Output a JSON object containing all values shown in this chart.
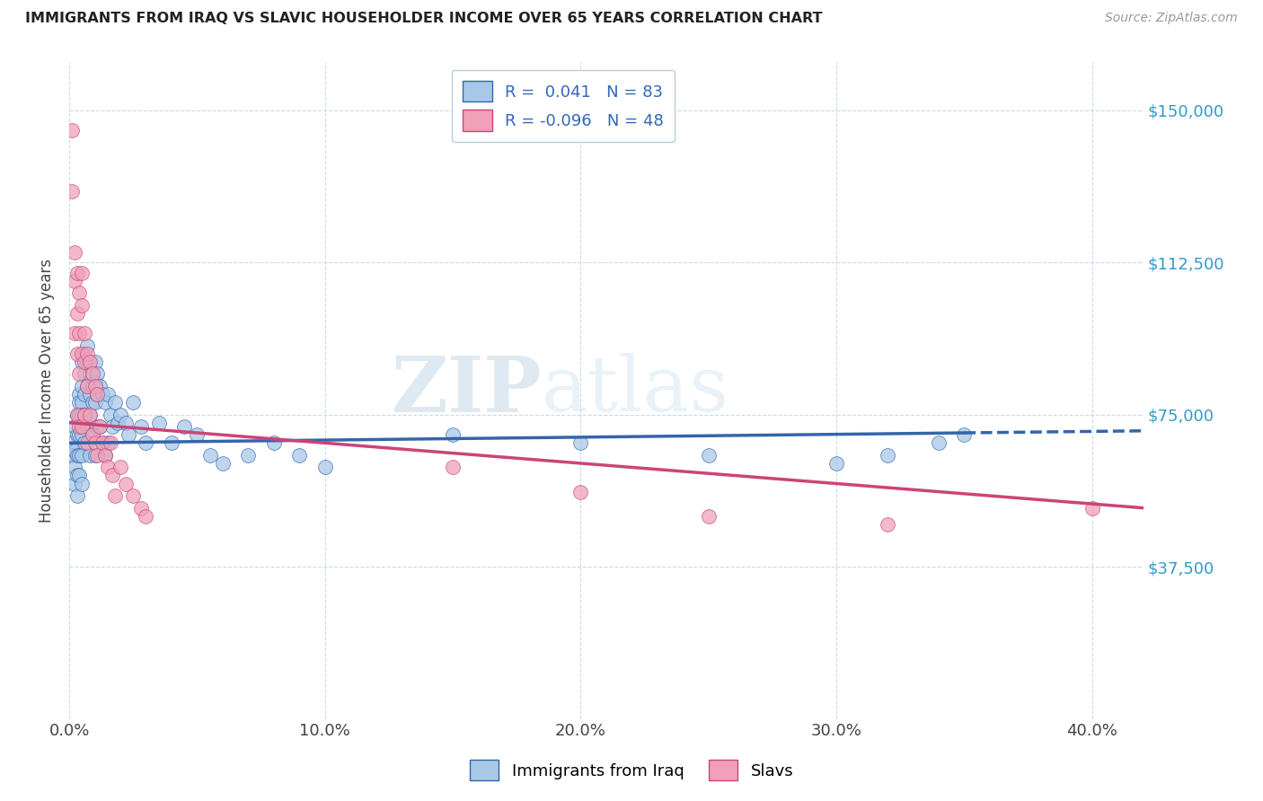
{
  "title": "IMMIGRANTS FROM IRAQ VS SLAVIC HOUSEHOLDER INCOME OVER 65 YEARS CORRELATION CHART",
  "source": "Source: ZipAtlas.com",
  "ylabel": "Householder Income Over 65 years",
  "xlabel_ticks": [
    "0.0%",
    "10.0%",
    "20.0%",
    "30.0%",
    "40.0%"
  ],
  "xlabel_values": [
    0.0,
    0.1,
    0.2,
    0.3,
    0.4
  ],
  "ytick_labels": [
    "$37,500",
    "$75,000",
    "$112,500",
    "$150,000"
  ],
  "ytick_values": [
    37500,
    75000,
    112500,
    150000
  ],
  "xlim": [
    0.0,
    0.42
  ],
  "ylim": [
    0,
    162000
  ],
  "legend_label1": "Immigrants from Iraq",
  "legend_label2": "Slavs",
  "r1": 0.041,
  "n1": 83,
  "r2": -0.096,
  "n2": 48,
  "color1": "#a8c8e8",
  "color2": "#f0a0b8",
  "trendline1_color": "#3366aa",
  "trendline2_color": "#cc4477",
  "watermark_zip": "ZIP",
  "watermark_atlas": "atlas",
  "iraq_trend_x0": 0.0,
  "iraq_trend_y0": 68000,
  "iraq_trend_x1": 0.35,
  "iraq_trend_y1": 70500,
  "iraq_trend_dash_x0": 0.35,
  "iraq_trend_dash_x1": 0.42,
  "slavic_trend_x0": 0.0,
  "slavic_trend_y0": 73000,
  "slavic_trend_x1": 0.42,
  "slavic_trend_y1": 52000,
  "iraq_x": [
    0.001,
    0.001,
    0.002,
    0.002,
    0.002,
    0.002,
    0.003,
    0.003,
    0.003,
    0.003,
    0.003,
    0.004,
    0.004,
    0.004,
    0.004,
    0.004,
    0.004,
    0.005,
    0.005,
    0.005,
    0.005,
    0.005,
    0.005,
    0.005,
    0.006,
    0.006,
    0.006,
    0.006,
    0.006,
    0.007,
    0.007,
    0.007,
    0.007,
    0.008,
    0.008,
    0.008,
    0.008,
    0.008,
    0.009,
    0.009,
    0.009,
    0.01,
    0.01,
    0.01,
    0.01,
    0.011,
    0.011,
    0.011,
    0.012,
    0.012,
    0.013,
    0.013,
    0.014,
    0.014,
    0.015,
    0.015,
    0.016,
    0.017,
    0.018,
    0.019,
    0.02,
    0.022,
    0.023,
    0.025,
    0.028,
    0.03,
    0.035,
    0.04,
    0.045,
    0.05,
    0.055,
    0.06,
    0.07,
    0.08,
    0.09,
    0.1,
    0.15,
    0.2,
    0.25,
    0.3,
    0.32,
    0.34,
    0.35
  ],
  "iraq_y": [
    68000,
    65000,
    72000,
    66000,
    62000,
    58000,
    75000,
    70000,
    65000,
    60000,
    55000,
    80000,
    78000,
    75000,
    70000,
    65000,
    60000,
    88000,
    82000,
    78000,
    75000,
    70000,
    65000,
    58000,
    90000,
    85000,
    80000,
    75000,
    68000,
    92000,
    88000,
    82000,
    72000,
    88000,
    85000,
    80000,
    75000,
    65000,
    82000,
    78000,
    70000,
    88000,
    83000,
    78000,
    65000,
    85000,
    80000,
    72000,
    82000,
    72000,
    80000,
    68000,
    78000,
    65000,
    80000,
    68000,
    75000,
    72000,
    78000,
    73000,
    75000,
    73000,
    70000,
    78000,
    72000,
    68000,
    73000,
    68000,
    72000,
    70000,
    65000,
    63000,
    65000,
    68000,
    65000,
    62000,
    70000,
    68000,
    65000,
    63000,
    65000,
    68000,
    70000
  ],
  "slavic_x": [
    0.001,
    0.001,
    0.002,
    0.002,
    0.002,
    0.003,
    0.003,
    0.003,
    0.003,
    0.004,
    0.004,
    0.004,
    0.004,
    0.005,
    0.005,
    0.005,
    0.005,
    0.006,
    0.006,
    0.006,
    0.007,
    0.007,
    0.007,
    0.008,
    0.008,
    0.009,
    0.009,
    0.01,
    0.01,
    0.011,
    0.011,
    0.012,
    0.013,
    0.014,
    0.015,
    0.016,
    0.017,
    0.018,
    0.02,
    0.022,
    0.025,
    0.028,
    0.03,
    0.15,
    0.2,
    0.25,
    0.32,
    0.4
  ],
  "slavic_y": [
    145000,
    130000,
    115000,
    108000,
    95000,
    110000,
    100000,
    90000,
    75000,
    105000,
    95000,
    85000,
    72000,
    110000,
    102000,
    90000,
    72000,
    95000,
    88000,
    75000,
    90000,
    82000,
    68000,
    88000,
    75000,
    85000,
    70000,
    82000,
    68000,
    80000,
    65000,
    72000,
    68000,
    65000,
    62000,
    68000,
    60000,
    55000,
    62000,
    58000,
    55000,
    52000,
    50000,
    62000,
    56000,
    50000,
    48000,
    52000
  ]
}
